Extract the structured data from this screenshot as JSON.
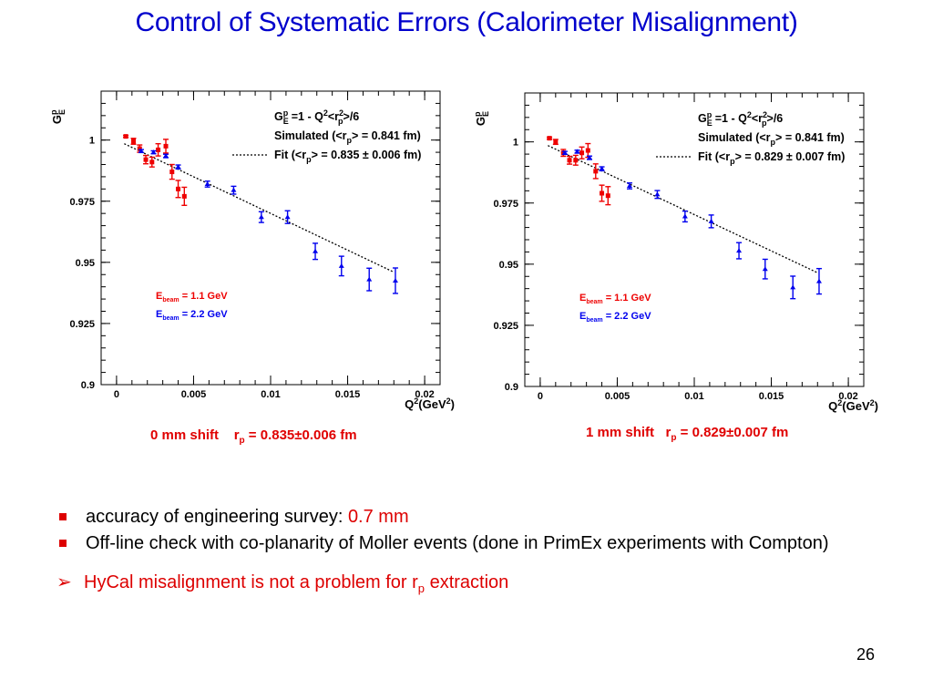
{
  "slide": {
    "title": "Control of Systematic Errors (Calorimeter Misalignment)",
    "page_number": "26"
  },
  "bullets": [
    {
      "text": "accuracy of engineering survey: ",
      "highlight": "0.7 mm"
    },
    {
      "text": "Off-line check with co-planarity of Moller events  (done in PrimEx experiments with Compton)",
      "highlight": ""
    }
  ],
  "conclusion": {
    "text_before": "HyCal misalignment is not a problem for r",
    "subscript": "p",
    "text_after": " extraction"
  },
  "chart_data": [
    {
      "type": "scatter",
      "id": "left",
      "caption": {
        "shift": "0 mm shift",
        "r": "r",
        "r_sub": "p",
        "value": " = 0.835±0.006 fm"
      },
      "xlabel": "Q2(GeV2)",
      "ylabel": "GpE",
      "xlim": [
        -0.001,
        0.021
      ],
      "ylim": [
        0.9,
        1.02
      ],
      "x_ticks": [
        0,
        0.005,
        0.01,
        0.015,
        0.02
      ],
      "x_tick_labels": [
        "0",
        "0.005",
        "0.01",
        "0.015",
        "0.02"
      ],
      "y_ticks": [
        0.9,
        0.925,
        0.95,
        0.975,
        1
      ],
      "y_tick_labels": [
        "0.9",
        "0.925",
        "0.95",
        "0.975",
        "1"
      ],
      "legend": {
        "formula": "GpE =1 - Q2<r2p>/6",
        "simulated": "Simulated (<rp> = 0.841 fm)",
        "fit": "Fit (<rp> = 0.835 ± 0.006 fm)",
        "beam_1": "Ebeam = 1.1 GeV",
        "beam_2": "Ebeam = 2.2 GeV"
      },
      "fit_line": {
        "x": [
          0.0005,
          0.018
        ],
        "y": [
          0.9985,
          0.946
        ]
      },
      "series": [
        {
          "name": "Ebeam = 1.1 GeV",
          "color": "#ee0000",
          "x": [
            0.0006,
            0.0011,
            0.0015,
            0.0019,
            0.0023,
            0.0027,
            0.0032,
            0.0036,
            0.004,
            0.0044
          ],
          "y": [
            1.0015,
            0.9995,
            0.9965,
            0.992,
            0.991,
            0.996,
            0.9975,
            0.987,
            0.98,
            0.977
          ],
          "err": [
            0.0004,
            0.0012,
            0.0015,
            0.0017,
            0.002,
            0.0025,
            0.0028,
            0.003,
            0.0035,
            0.0037
          ]
        },
        {
          "name": "Ebeam = 2.2 GeV",
          "color": "#0000ee",
          "x": [
            0.0016,
            0.0024,
            0.0032,
            0.004,
            0.0059,
            0.0076,
            0.0094,
            0.0111,
            0.0129,
            0.0146,
            0.0164,
            0.0181
          ],
          "y": [
            0.9955,
            0.995,
            0.9935,
            0.989,
            0.982,
            0.9795,
            0.9685,
            0.9685,
            0.9545,
            0.9485,
            0.943,
            0.9425
          ],
          "err": [
            0.0006,
            0.0006,
            0.0007,
            0.0008,
            0.0012,
            0.0016,
            0.0022,
            0.0026,
            0.0033,
            0.004,
            0.0046,
            0.0052
          ]
        }
      ]
    },
    {
      "type": "scatter",
      "id": "right",
      "caption": {
        "shift": "1 mm shift",
        "r": "r",
        "r_sub": "p",
        "value": " = 0.829±0.007 fm"
      },
      "xlabel": "Q2(GeV2)",
      "ylabel": "GpE",
      "xlim": [
        -0.001,
        0.021
      ],
      "ylim": [
        0.9,
        1.02
      ],
      "x_ticks": [
        0,
        0.005,
        0.01,
        0.015,
        0.02
      ],
      "x_tick_labels": [
        "0",
        "0.005",
        "0.01",
        "0.015",
        "0.02"
      ],
      "y_ticks": [
        0.9,
        0.925,
        0.95,
        0.975,
        1
      ],
      "y_tick_labels": [
        "0.9",
        "0.925",
        "0.95",
        "0.975",
        "1"
      ],
      "legend": {
        "formula": "GpE =1 - Q2<r2p>/6",
        "simulated": "Simulated (<rp> = 0.841 fm)",
        "fit": "Fit (<rp> = 0.829 ± 0.007 fm)",
        "beam_1": "Ebeam = 1.1 GeV",
        "beam_2": "Ebeam = 2.2 GeV"
      },
      "fit_line": {
        "x": [
          0.0005,
          0.018
        ],
        "y": [
          0.9985,
          0.9465
        ]
      },
      "series": [
        {
          "name": "Ebeam = 1.1 GeV",
          "color": "#ee0000",
          "x": [
            0.0006,
            0.001,
            0.0015,
            0.0019,
            0.0023,
            0.0027,
            0.0031,
            0.0036,
            0.004,
            0.0044
          ],
          "y": [
            1.0015,
            1.0,
            0.9955,
            0.9925,
            0.9925,
            0.9955,
            0.9965,
            0.988,
            0.979,
            0.978
          ],
          "err": [
            0.0004,
            0.001,
            0.0014,
            0.0016,
            0.002,
            0.0024,
            0.0028,
            0.003,
            0.0033,
            0.0037
          ]
        },
        {
          "name": "Ebeam = 2.2 GeV",
          "color": "#0000ee",
          "x": [
            0.0016,
            0.0024,
            0.0032,
            0.004,
            0.0058,
            0.0076,
            0.0094,
            0.0111,
            0.0129,
            0.0146,
            0.0164,
            0.0181
          ],
          "y": [
            0.9955,
            0.996,
            0.9935,
            0.989,
            0.982,
            0.9785,
            0.9695,
            0.9675,
            0.9555,
            0.948,
            0.9405,
            0.943
          ],
          "err": [
            0.0006,
            0.0006,
            0.0007,
            0.0008,
            0.0012,
            0.0016,
            0.0022,
            0.0026,
            0.0033,
            0.004,
            0.0046,
            0.0052
          ]
        }
      ]
    }
  ]
}
